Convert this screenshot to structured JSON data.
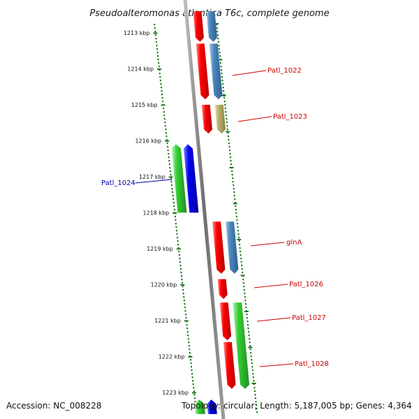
{
  "title": "Pseudoalteromonas atlantica T6c, complete genome",
  "footer": {
    "accession": "Accession: NC_008228",
    "topology": "Topology: circular; Length: 5,187,005 bp; Genes: 4,364"
  },
  "colors": {
    "backbone": "#7a7a7a",
    "tick": "#1f7a1f",
    "red_gene": "#ee0000",
    "steelblue_gene": "#4682b4",
    "khaki_gene": "#b5ad6a",
    "green_gene": "#33cc33",
    "blue_gene": "#0000ee",
    "label_red": "#cc0000",
    "label_blue": "#0000aa"
  },
  "kbp_ticks": [
    {
      "kbp": 1213,
      "label": "1213 kbp"
    },
    {
      "kbp": 1214,
      "label": "1214 kbp"
    },
    {
      "kbp": 1215,
      "label": "1215 kbp"
    },
    {
      "kbp": 1216,
      "label": "1216 kbp"
    },
    {
      "kbp": 1217,
      "label": "1217 kbp"
    },
    {
      "kbp": 1218,
      "label": "1218 kbp"
    },
    {
      "kbp": 1219,
      "label": "1219 kbp"
    },
    {
      "kbp": 1220,
      "label": "1220 kbp"
    },
    {
      "kbp": 1221,
      "label": "1221 kbp"
    },
    {
      "kbp": 1222,
      "label": "1222 kbp"
    },
    {
      "kbp": 1223,
      "label": "1223 kbp"
    }
  ],
  "genes": [
    {
      "name": "",
      "strand": "forward",
      "color": "red",
      "start_kbp": 1212.4,
      "end_kbp": 1213.25
    },
    {
      "name": "",
      "strand": "forward",
      "color": "steelblue",
      "start_kbp": 1212.4,
      "end_kbp": 1213.25
    },
    {
      "name": "",
      "strand": "forward",
      "color": "red",
      "start_kbp": 1213.3,
      "end_kbp": 1214.85
    },
    {
      "name": "Patl_1022",
      "strand": "forward",
      "color": "steelblue",
      "start_kbp": 1213.3,
      "end_kbp": 1214.85
    },
    {
      "name": "",
      "strand": "forward",
      "color": "red",
      "start_kbp": 1215.0,
      "end_kbp": 1215.8
    },
    {
      "name": "Patl_1023",
      "strand": "forward",
      "color": "khaki",
      "start_kbp": 1215.0,
      "end_kbp": 1215.8
    },
    {
      "name": "Patl_1024",
      "strand": "reverse",
      "color": "green",
      "start_kbp": 1216.1,
      "end_kbp": 1218.0
    },
    {
      "name": "",
      "strand": "reverse",
      "color": "blue",
      "start_kbp": 1216.1,
      "end_kbp": 1218.0
    },
    {
      "name": "",
      "strand": "forward",
      "color": "red",
      "start_kbp": 1218.25,
      "end_kbp": 1219.7
    },
    {
      "name": "glnA",
      "strand": "forward",
      "color": "steelblue",
      "start_kbp": 1218.25,
      "end_kbp": 1219.7
    },
    {
      "name": "Patl_1026",
      "strand": "forward",
      "color": "red",
      "start_kbp": 1219.85,
      "end_kbp": 1220.4
    },
    {
      "name": "",
      "strand": "forward",
      "color": "red",
      "start_kbp": 1220.5,
      "end_kbp": 1221.55
    },
    {
      "name": "Patl_1027",
      "strand": "forward",
      "color": "green",
      "start_kbp": 1220.5,
      "end_kbp": 1222.9
    },
    {
      "name": "Patl_1028",
      "strand": "forward",
      "color": "red",
      "start_kbp": 1221.6,
      "end_kbp": 1222.9
    },
    {
      "name": "",
      "strand": "reverse",
      "color": "green",
      "start_kbp": 1223.2,
      "end_kbp": 1223.6
    },
    {
      "name": "",
      "strand": "reverse",
      "color": "blue",
      "start_kbp": 1223.2,
      "end_kbp": 1223.6
    }
  ],
  "gene_labels": [
    {
      "text": "Patl_1022",
      "color": "red"
    },
    {
      "text": "Patl_1023",
      "color": "red"
    },
    {
      "text": "Patl_1024",
      "color": "blue"
    },
    {
      "text": "glnA",
      "color": "red"
    },
    {
      "text": "Patl_1026",
      "color": "red"
    },
    {
      "text": "Patl_1027",
      "color": "red"
    },
    {
      "text": "Patl_1028",
      "color": "red"
    }
  ]
}
